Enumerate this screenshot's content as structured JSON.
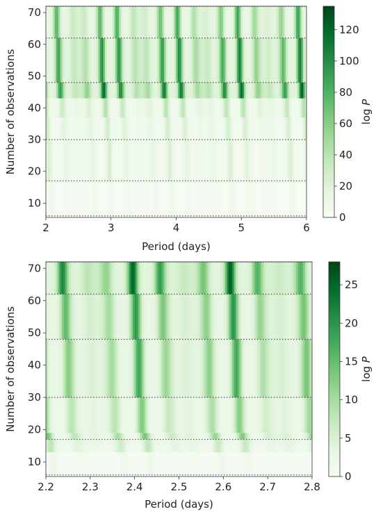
{
  "chart_data": [
    {
      "type": "heatmap",
      "title": "",
      "xlabel": "Period (days)",
      "ylabel": "Number of observations",
      "colorbar_label": "log P",
      "colormap": "Greens",
      "xlim": [
        2,
        6
      ],
      "ylim": [
        5.5,
        72
      ],
      "xticks": [
        2,
        3,
        4,
        5,
        6
      ],
      "yticks": [
        10,
        20,
        30,
        40,
        50,
        60,
        70
      ],
      "clim": [
        0,
        135
      ],
      "colorbar_ticks": [
        0,
        20,
        40,
        60,
        80,
        100,
        120
      ],
      "reference_lines_y": [
        6,
        17,
        30,
        48,
        62,
        72
      ],
      "intensity_by_n": [
        {
          "n_from": 6,
          "n_to": 17,
          "approx_logP_max": 8
        },
        {
          "n_from": 17,
          "n_to": 30,
          "approx_logP_max": 25
        },
        {
          "n_from": 30,
          "n_to": 37,
          "approx_logP_max": 30
        },
        {
          "n_from": 37,
          "n_to": 43,
          "approx_logP_max": 45
        },
        {
          "n_from": 43,
          "n_to": 48,
          "approx_logP_max": 125
        },
        {
          "n_from": 48,
          "n_to": 62,
          "approx_logP_max": 110
        },
        {
          "n_from": 62,
          "n_to": 72,
          "approx_logP_max": 90
        }
      ]
    },
    {
      "type": "heatmap",
      "title": "",
      "xlabel": "Period (days)",
      "ylabel": "Number of observations",
      "colorbar_label": "log P",
      "colormap": "Greens",
      "xlim": [
        2.2,
        2.8
      ],
      "ylim": [
        5.5,
        72
      ],
      "xticks": [
        2.2,
        2.3,
        2.4,
        2.5,
        2.6,
        2.7,
        2.8
      ],
      "yticks": [
        10,
        20,
        30,
        40,
        50,
        60,
        70
      ],
      "clim": [
        0,
        28
      ],
      "colorbar_ticks": [
        0,
        5,
        10,
        15,
        20,
        25
      ],
      "reference_lines_y": [
        6,
        17,
        30,
        48,
        62,
        72
      ],
      "intensity_by_n": [
        {
          "n_from": 6,
          "n_to": 13,
          "approx_logP_max": 2
        },
        {
          "n_from": 13,
          "n_to": 17,
          "approx_logP_max": 8
        },
        {
          "n_from": 17,
          "n_to": 19,
          "approx_logP_max": 14
        },
        {
          "n_from": 19,
          "n_to": 30,
          "approx_logP_max": 13
        },
        {
          "n_from": 30,
          "n_to": 48,
          "approx_logP_max": 18
        },
        {
          "n_from": 48,
          "n_to": 62,
          "approx_logP_max": 20
        },
        {
          "n_from": 62,
          "n_to": 72,
          "approx_logP_max": 26
        }
      ]
    }
  ]
}
